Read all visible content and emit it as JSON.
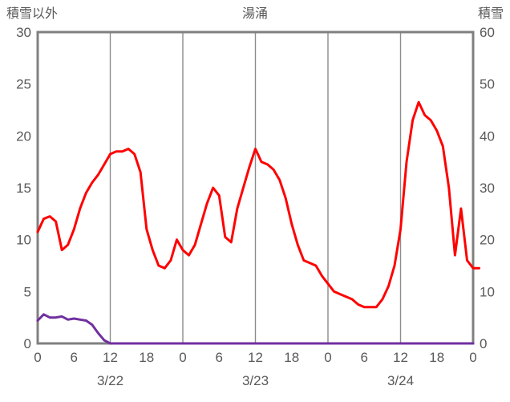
{
  "header": {
    "left_axis_title": "積雪以外",
    "chart_title": "湯涌",
    "right_axis_title": "積雪"
  },
  "chart_data": {
    "type": "line",
    "title": "湯涌",
    "left_axis_label": "積雪以外",
    "right_axis_label": "積雪",
    "x_total_hours": 72,
    "left_ylim": [
      0,
      30
    ],
    "right_ylim": [
      0,
      60
    ],
    "left_ticks": [
      0,
      5,
      10,
      15,
      20,
      25,
      30
    ],
    "right_ticks": [
      0,
      10,
      20,
      30,
      40,
      50,
      60
    ],
    "x_ticks": [
      {
        "hour": 0,
        "label": "0"
      },
      {
        "hour": 6,
        "label": "6"
      },
      {
        "hour": 12,
        "label": "12"
      },
      {
        "hour": 18,
        "label": "18"
      },
      {
        "hour": 24,
        "label": "0"
      },
      {
        "hour": 30,
        "label": "6"
      },
      {
        "hour": 36,
        "label": "12"
      },
      {
        "hour": 42,
        "label": "18"
      },
      {
        "hour": 48,
        "label": "0"
      },
      {
        "hour": 54,
        "label": "6"
      },
      {
        "hour": 60,
        "label": "12"
      },
      {
        "hour": 66,
        "label": "18"
      },
      {
        "hour": 72,
        "label": "0"
      }
    ],
    "date_labels": [
      {
        "hour": 12,
        "label": "3/22"
      },
      {
        "hour": 36,
        "label": "3/23"
      },
      {
        "hour": 60,
        "label": "3/24"
      }
    ],
    "grid_hours": [
      12,
      24,
      36,
      48,
      60
    ],
    "colors": {
      "frame": "#808080",
      "grid": "#8c8c8c",
      "text": "#595959",
      "snow_line": "#ff0000",
      "other_line": "#7030a0"
    },
    "series": [
      {
        "name": "sekisetsu",
        "label": "積雪",
        "axis": "right",
        "color": "#ff0000",
        "values": [
          21.5,
          24,
          24.5,
          23.5,
          18,
          19,
          22,
          26,
          29,
          31,
          32.5,
          34.5,
          36.5,
          37,
          37,
          37.5,
          36.5,
          33,
          22,
          18,
          15,
          14.5,
          16,
          20,
          18,
          17,
          19,
          23,
          27,
          30,
          28.5,
          20.5,
          19.5,
          26,
          30,
          34,
          37.5,
          35,
          34.5,
          33.5,
          31.5,
          28,
          23,
          19,
          16,
          15.5,
          15,
          13,
          11.5,
          10,
          9.5,
          9,
          8.5,
          7.5,
          7,
          7,
          7,
          8.5,
          11,
          15,
          22,
          35,
          43,
          46.5,
          44,
          43,
          41,
          38,
          30,
          17,
          26,
          16,
          14.5,
          14.5
        ]
      },
      {
        "name": "sekisetsu-igai",
        "label": "積雪以外",
        "axis": "left",
        "color": "#7030a0",
        "values": [
          2.2,
          2.8,
          2.5,
          2.5,
          2.6,
          2.3,
          2.4,
          2.3,
          2.2,
          1.8,
          1.0,
          0.3,
          0,
          0,
          0,
          0,
          0,
          0,
          0,
          0,
          0,
          0,
          0,
          0,
          0,
          0,
          0,
          0,
          0,
          0,
          0,
          0,
          0,
          0,
          0,
          0,
          0,
          0,
          0,
          0,
          0,
          0,
          0,
          0,
          0,
          0,
          0,
          0,
          0,
          0,
          0,
          0,
          0,
          0,
          0,
          0,
          0,
          0,
          0,
          0,
          0,
          0,
          0,
          0,
          0,
          0,
          0,
          0,
          0,
          0,
          0,
          0,
          0
        ]
      }
    ]
  }
}
